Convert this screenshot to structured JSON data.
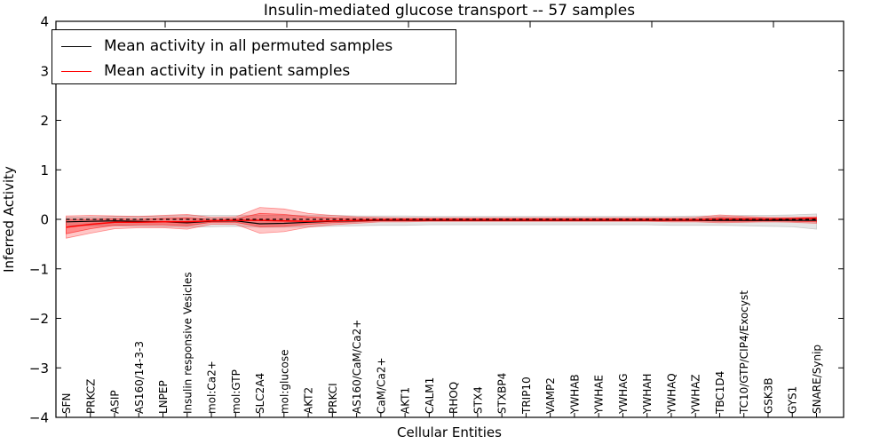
{
  "chart_data": {
    "type": "line",
    "title": "Insulin-mediated glucose transport -- 57 samples",
    "xlabel": "Cellular Entities",
    "ylabel": "Inferred Activity",
    "ylim": [
      -4,
      4
    ],
    "yticks": [
      -4,
      -3,
      -2,
      -1,
      0,
      1,
      2,
      3,
      4
    ],
    "ytick_labels": [
      "−4",
      "−3",
      "−2",
      "−1",
      "0",
      "1",
      "2",
      "3",
      "4"
    ],
    "grid": false,
    "legend_position": "upper left",
    "categories": [
      "SFN",
      "PRKCZ",
      "ASIP",
      "AS160/14-3-3",
      "LNPEP",
      "Insulin responsive Vesicles",
      "mol:Ca2+",
      "mol:GTP",
      "SLC2A4",
      "mol:glucose",
      "AKT2",
      "PRKCI",
      "AS160/CaM/Ca2+",
      "CaM/Ca2+",
      "AKT1",
      "CALM1",
      "RHOQ",
      "STX4",
      "STXBP4",
      "TRIP10",
      "VAMP2",
      "YWHAB",
      "YWHAE",
      "YWHAG",
      "YWHAH",
      "YWHAQ",
      "YWHAZ",
      "TBC1D4",
      "TC10/GTP/CIP4/Exocyst",
      "GSK3B",
      "GYS1",
      "SNARE/Synip"
    ],
    "series": [
      {
        "name": "Mean activity in all permuted samples",
        "color": "#000000",
        "style": "solid",
        "values": [
          -0.05,
          -0.04,
          -0.03,
          -0.04,
          -0.05,
          -0.07,
          -0.04,
          -0.03,
          -0.09,
          -0.08,
          -0.06,
          -0.04,
          -0.03,
          -0.02,
          -0.02,
          -0.02,
          -0.02,
          -0.02,
          -0.02,
          -0.02,
          -0.02,
          -0.02,
          -0.02,
          -0.02,
          -0.02,
          -0.02,
          -0.02,
          -0.02,
          -0.02,
          -0.02,
          -0.02,
          -0.02
        ]
      },
      {
        "name": "Mean activity in patient samples",
        "color": "#ff0000",
        "style": "solid",
        "values": [
          -0.16,
          -0.1,
          -0.06,
          -0.06,
          -0.05,
          -0.05,
          -0.03,
          -0.02,
          -0.02,
          -0.03,
          -0.04,
          -0.03,
          -0.02,
          -0.01,
          -0.01,
          -0.01,
          -0.01,
          -0.01,
          -0.01,
          -0.01,
          -0.01,
          -0.01,
          -0.01,
          -0.01,
          -0.01,
          -0.01,
          -0.01,
          0.0,
          0.0,
          0.0,
          0.01,
          0.02
        ]
      }
    ],
    "bands": [
      {
        "name": "permuted-samples-std-band",
        "color": "#999999",
        "opacity": 0.25,
        "upper": [
          0.04,
          0.05,
          0.06,
          0.06,
          0.07,
          0.08,
          0.08,
          0.08,
          0.08,
          0.08,
          0.08,
          0.08,
          0.07,
          0.07,
          0.07,
          0.06,
          0.06,
          0.06,
          0.06,
          0.06,
          0.06,
          0.06,
          0.06,
          0.06,
          0.06,
          0.06,
          0.07,
          0.07,
          0.08,
          0.08,
          0.09,
          0.11
        ],
        "lower": [
          -0.12,
          -0.13,
          -0.13,
          -0.14,
          -0.15,
          -0.16,
          -0.15,
          -0.14,
          -0.16,
          -0.16,
          -0.15,
          -0.14,
          -0.13,
          -0.12,
          -0.12,
          -0.11,
          -0.11,
          -0.11,
          -0.11,
          -0.11,
          -0.11,
          -0.11,
          -0.11,
          -0.11,
          -0.11,
          -0.12,
          -0.12,
          -0.12,
          -0.13,
          -0.14,
          -0.15,
          -0.2
        ]
      },
      {
        "name": "patient-samples-std-outer-band",
        "color": "#ff0000",
        "opacity": 0.22,
        "upper": [
          0.07,
          0.08,
          0.07,
          0.06,
          0.08,
          0.1,
          0.04,
          0.05,
          0.24,
          0.21,
          0.12,
          0.08,
          0.05,
          0.04,
          0.03,
          0.03,
          0.03,
          0.03,
          0.03,
          0.03,
          0.03,
          0.03,
          0.03,
          0.03,
          0.03,
          0.03,
          0.04,
          0.09,
          0.06,
          0.04,
          0.04,
          0.05
        ],
        "lower": [
          -0.38,
          -0.28,
          -0.19,
          -0.17,
          -0.17,
          -0.2,
          -0.1,
          -0.1,
          -0.28,
          -0.25,
          -0.16,
          -0.11,
          -0.08,
          -0.05,
          -0.05,
          -0.04,
          -0.04,
          -0.04,
          -0.04,
          -0.04,
          -0.04,
          -0.04,
          -0.04,
          -0.04,
          -0.04,
          -0.05,
          -0.05,
          -0.07,
          -0.06,
          -0.05,
          -0.06,
          -0.08
        ]
      },
      {
        "name": "patient-samples-std-inner-band",
        "color": "#ff0000",
        "opacity": 0.3,
        "upper": [
          0.0,
          0.0,
          0.01,
          0.0,
          0.02,
          0.03,
          0.0,
          0.01,
          0.12,
          0.1,
          0.05,
          0.03,
          0.02,
          0.01,
          0.01,
          0.01,
          0.01,
          0.01,
          0.01,
          0.01,
          0.01,
          0.01,
          0.01,
          0.01,
          0.01,
          0.01,
          0.01,
          0.04,
          0.03,
          0.02,
          0.02,
          0.03
        ],
        "lower": [
          -0.29,
          -0.19,
          -0.12,
          -0.11,
          -0.11,
          -0.13,
          -0.06,
          -0.06,
          -0.15,
          -0.14,
          -0.1,
          -0.07,
          -0.05,
          -0.03,
          -0.03,
          -0.03,
          -0.03,
          -0.03,
          -0.03,
          -0.03,
          -0.03,
          -0.03,
          -0.03,
          -0.03,
          -0.03,
          -0.03,
          -0.03,
          -0.04,
          -0.04,
          -0.03,
          -0.04,
          -0.05
        ]
      }
    ],
    "reference_lines": [
      {
        "y": 0,
        "style": "dashed",
        "color": "#000000"
      }
    ]
  }
}
